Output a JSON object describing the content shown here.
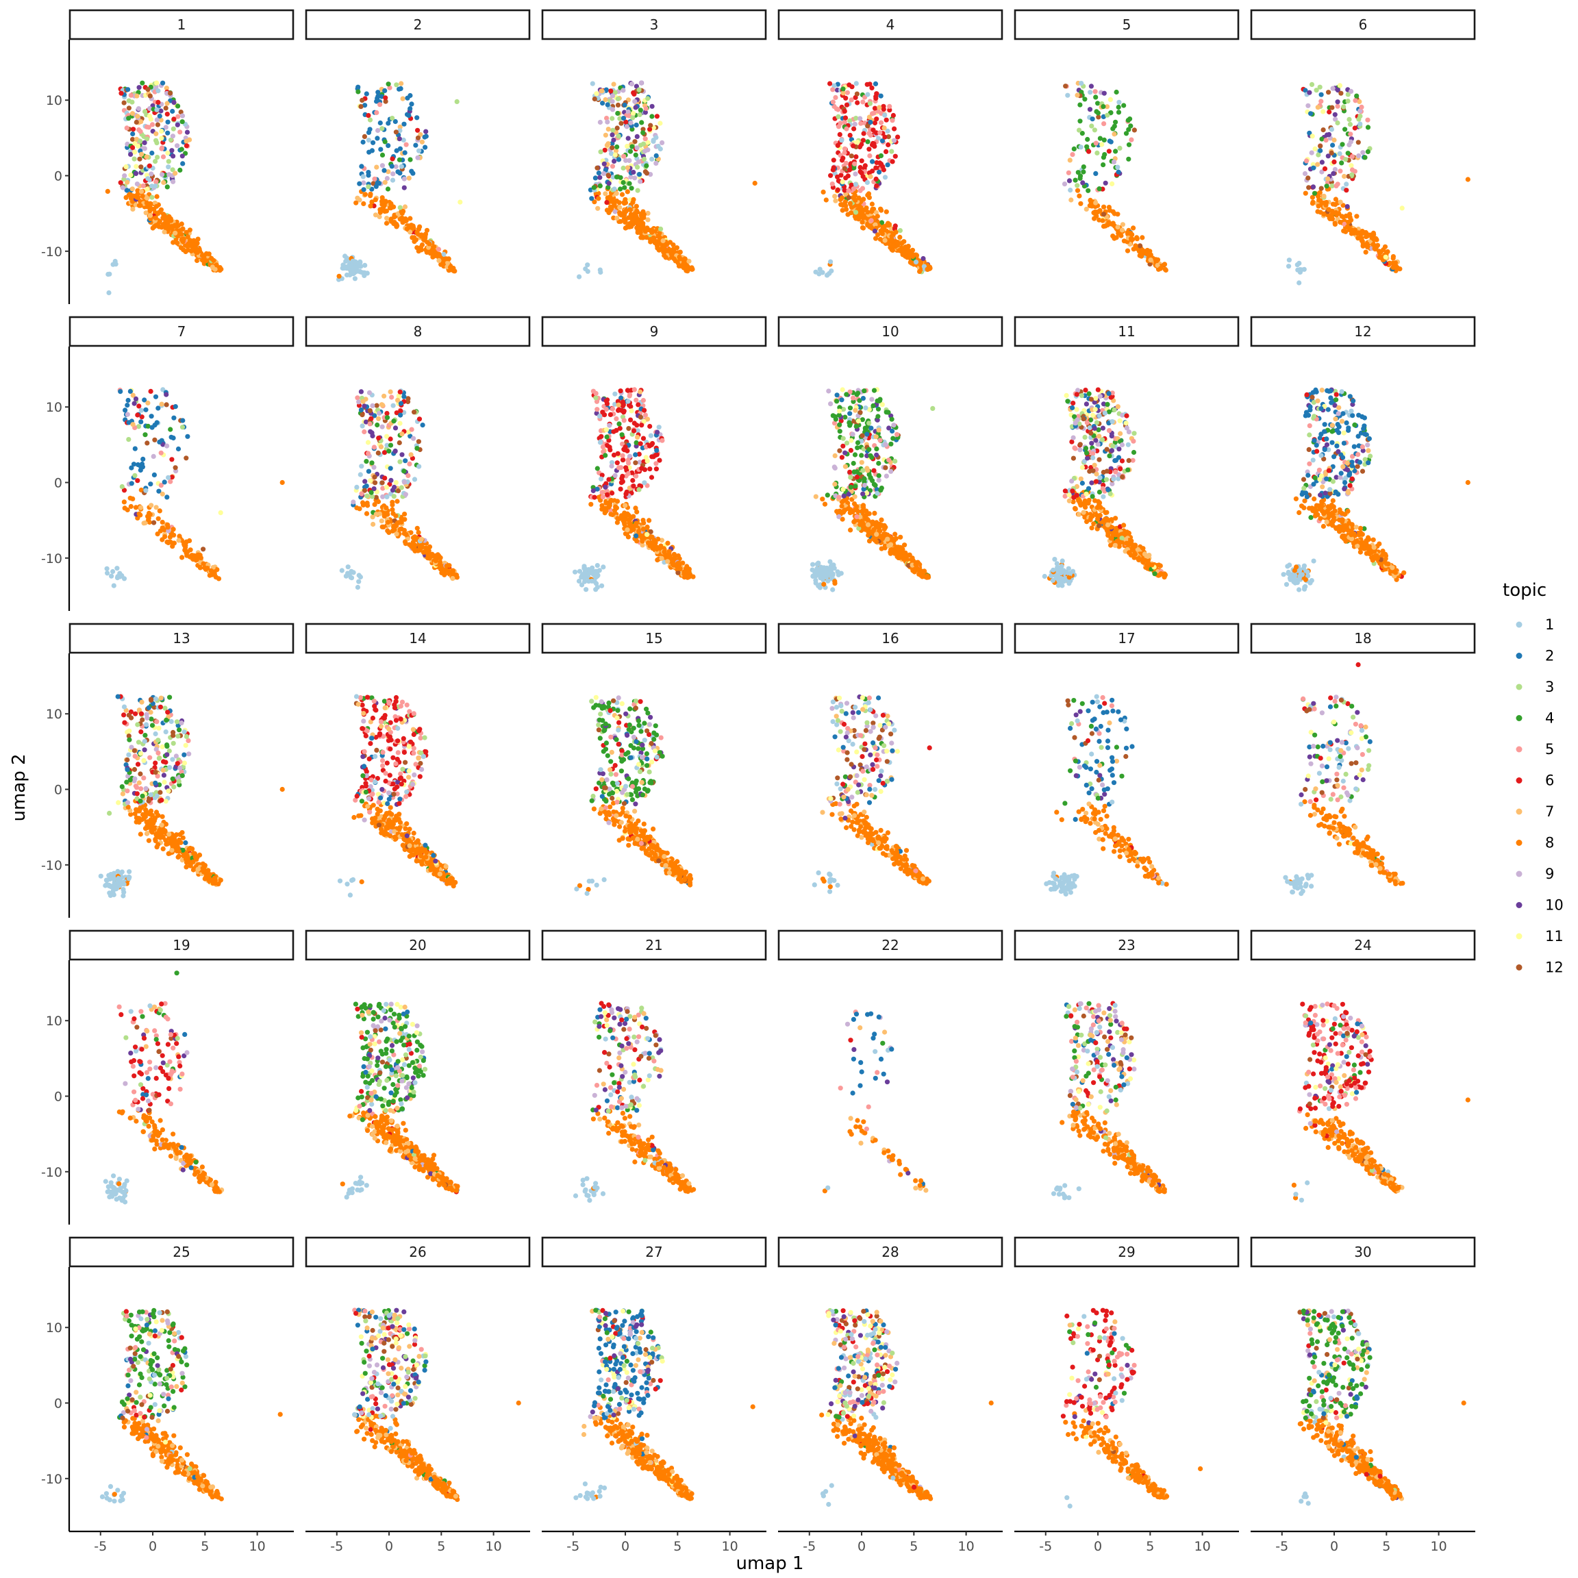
{
  "chart_data": {
    "type": "scatter",
    "facet_panels": [
      "1",
      "2",
      "3",
      "4",
      "5",
      "6",
      "7",
      "8",
      "9",
      "10",
      "11",
      "12",
      "13",
      "14",
      "15",
      "16",
      "17",
      "18",
      "19",
      "20",
      "21",
      "22",
      "23",
      "24",
      "25",
      "26",
      "27",
      "28",
      "29",
      "30"
    ],
    "xlabel": "umap 1",
    "ylabel": "umap 2",
    "xlim": [
      -8,
      13.5
    ],
    "ylim": [
      -17,
      18
    ],
    "x_ticks": [
      -5,
      0,
      5,
      10
    ],
    "x_tick_labels": [
      "-5",
      "0",
      "5",
      "10"
    ],
    "y_ticks": [
      -10,
      0,
      10
    ],
    "y_tick_labels": [
      "-10",
      "0",
      "10"
    ],
    "grid": false,
    "legend": {
      "title": "topic",
      "placement": "right",
      "entries": [
        "1",
        "2",
        "3",
        "4",
        "5",
        "6",
        "7",
        "8",
        "9",
        "10",
        "11",
        "12"
      ]
    },
    "colors": {
      "1": "#a6cee3",
      "2": "#1f78b4",
      "3": "#b2df8a",
      "4": "#33a02c",
      "5": "#fb9a99",
      "6": "#e31a1c",
      "7": "#fdbf6f",
      "8": "#ff7f00",
      "9": "#cab2d6",
      "10": "#6a3d9a",
      "11": "#ffff99",
      "12": "#b15928"
    },
    "cluster_regions": {
      "upper_cluster": {
        "x_range": [
          -3.5,
          4
        ],
        "y_range": [
          -2,
          12.5
        ]
      },
      "lower_cluster": {
        "x_range": [
          -4,
          7
        ],
        "y_range": [
          -13,
          -1
        ],
        "dominant_topic": "8"
      },
      "left_tail": {
        "x_range": [
          -6,
          -1
        ],
        "y_range": [
          -16,
          -8
        ],
        "dominant_topic": "1"
      }
    },
    "outliers": [
      {
        "panel": "1",
        "x": -4.2,
        "y": -15.5,
        "topic": "1"
      },
      {
        "panel": "2",
        "x": 6.5,
        "y": 9.8,
        "topic": "3"
      },
      {
        "panel": "2",
        "x": 6.8,
        "y": -3.5,
        "topic": "11"
      },
      {
        "panel": "3",
        "x": 12.4,
        "y": -1,
        "topic": "8"
      },
      {
        "panel": "6",
        "x": 12.8,
        "y": -0.5,
        "topic": "8"
      },
      {
        "panel": "6",
        "x": 6.5,
        "y": -4.3,
        "topic": "11"
      },
      {
        "panel": "7",
        "x": 12.4,
        "y": 0,
        "topic": "8"
      },
      {
        "panel": "7",
        "x": 6.5,
        "y": -4,
        "topic": "11"
      },
      {
        "panel": "10",
        "x": 6.8,
        "y": 9.8,
        "topic": "3"
      },
      {
        "panel": "12",
        "x": 12.8,
        "y": 0,
        "topic": "8"
      },
      {
        "panel": "13",
        "x": 12.4,
        "y": 0,
        "topic": "8"
      },
      {
        "panel": "16",
        "x": 6.5,
        "y": 5.5,
        "topic": "6"
      },
      {
        "panel": "18",
        "x": 2.3,
        "y": 16.5,
        "topic": "6"
      },
      {
        "panel": "19",
        "x": 2.3,
        "y": 16.3,
        "topic": "4"
      },
      {
        "panel": "24",
        "x": 12.8,
        "y": -0.5,
        "topic": "8"
      },
      {
        "panel": "25",
        "x": 12.2,
        "y": -1.5,
        "topic": "8"
      },
      {
        "panel": "26",
        "x": 12.4,
        "y": 0,
        "topic": "8"
      },
      {
        "panel": "27",
        "x": 12.2,
        "y": -0.5,
        "topic": "8"
      },
      {
        "panel": "28",
        "x": 12.4,
        "y": 0,
        "topic": "8"
      },
      {
        "panel": "29",
        "x": 9.8,
        "y": -8.7,
        "topic": "8"
      },
      {
        "panel": "30",
        "x": 12.4,
        "y": 0,
        "topic": "8"
      }
    ]
  }
}
